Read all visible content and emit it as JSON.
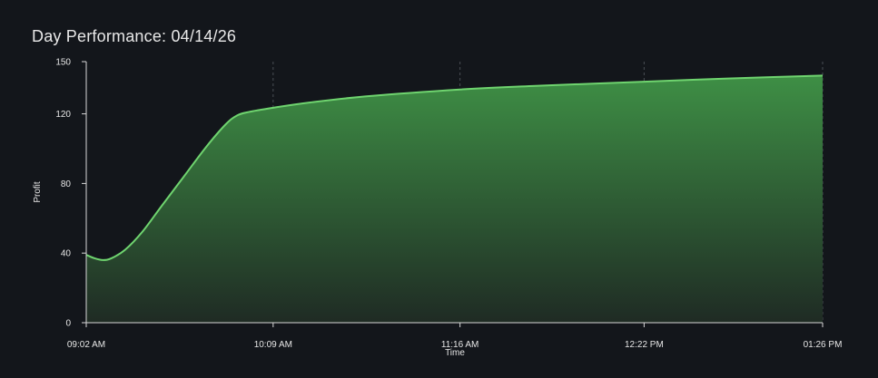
{
  "chart_data": {
    "type": "area",
    "title": "Day Performance: 04/14/26",
    "xlabel": "Time",
    "ylabel": "Profit",
    "ylim": [
      0,
      150
    ],
    "yticks": [
      0,
      40,
      80,
      120,
      150
    ],
    "xlim": [
      0,
      264
    ],
    "xticks": [
      {
        "t": 0,
        "label": "09:02 AM"
      },
      {
        "t": 67,
        "label": "10:09 AM"
      },
      {
        "t": 134,
        "label": "11:16 AM"
      },
      {
        "t": 200,
        "label": "12:22 PM"
      },
      {
        "t": 264,
        "label": "01:26 PM"
      }
    ],
    "series": [
      {
        "points": [
          [
            0,
            39
          ],
          [
            3,
            37
          ],
          [
            6,
            36
          ],
          [
            9,
            37
          ],
          [
            14,
            42
          ],
          [
            20,
            52
          ],
          [
            27,
            67
          ],
          [
            35,
            84
          ],
          [
            43,
            101
          ],
          [
            50,
            114
          ],
          [
            54,
            119
          ],
          [
            58,
            121
          ],
          [
            67,
            123.5
          ],
          [
            80,
            126.5
          ],
          [
            100,
            130
          ],
          [
            134,
            134
          ],
          [
            160,
            136
          ],
          [
            200,
            138.5
          ],
          [
            230,
            140.3
          ],
          [
            264,
            142
          ]
        ]
      }
    ],
    "grid": "x-dashed",
    "line_color": "#6fd46f",
    "fill_top_color": "#3e8f45",
    "fill_bottom_color": "#1f2b24",
    "axis_color": "#d8d8d8",
    "grid_color": "#4a4f55"
  }
}
